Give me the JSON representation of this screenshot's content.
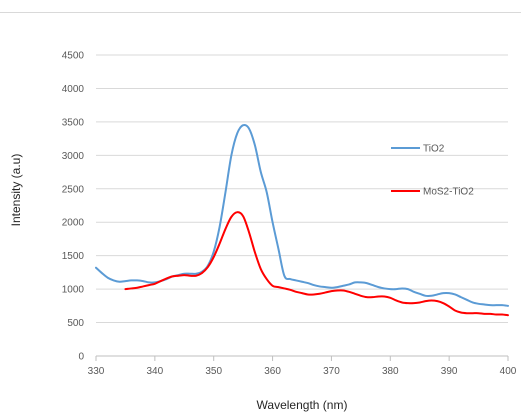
{
  "chart_data": {
    "type": "line",
    "xlabel": "Wavelength (nm)",
    "ylabel": "Intensity (a.u)",
    "xlim": [
      330,
      400
    ],
    "ylim": [
      0,
      4500
    ],
    "x_ticks": [
      "330",
      "340",
      "350",
      "360",
      "370",
      "380",
      "390",
      "400"
    ],
    "y_ticks": [
      "0",
      "500",
      "1000",
      "1500",
      "2000",
      "2500",
      "3000",
      "3500",
      "4000",
      "4500"
    ],
    "grid": "horizontal",
    "legend_position": "right",
    "series": [
      {
        "name": "TiO2",
        "color": "#5b9bd5",
        "x": [
          330,
          331,
          332,
          333,
          334,
          335,
          336,
          337,
          338,
          339,
          340,
          341,
          342,
          343,
          344,
          345,
          346,
          347,
          348,
          349,
          350,
          351,
          352,
          353,
          354,
          355,
          356,
          357,
          358,
          359,
          360,
          361,
          362,
          363,
          364,
          365,
          366,
          367,
          368,
          369,
          370,
          371,
          372,
          373,
          374,
          375,
          376,
          377,
          378,
          379,
          380,
          381,
          382,
          383,
          384,
          385,
          386,
          387,
          388,
          389,
          390,
          391,
          392,
          393,
          394,
          395,
          396,
          397,
          398,
          399,
          400
        ],
        "y": [
          1320,
          1240,
          1170,
          1130,
          1110,
          1120,
          1130,
          1130,
          1120,
          1100,
          1100,
          1120,
          1150,
          1190,
          1210,
          1230,
          1230,
          1230,
          1260,
          1350,
          1560,
          1930,
          2450,
          3000,
          3330,
          3450,
          3400,
          3150,
          2750,
          2450,
          2000,
          1600,
          1200,
          1150,
          1130,
          1110,
          1090,
          1060,
          1040,
          1030,
          1020,
          1030,
          1050,
          1070,
          1100,
          1100,
          1090,
          1060,
          1030,
          1010,
          1000,
          1000,
          1010,
          1000,
          960,
          930,
          900,
          900,
          920,
          940,
          940,
          920,
          880,
          840,
          800,
          780,
          770,
          760,
          760,
          760,
          750
        ]
      },
      {
        "name": "MoS2-TiO2",
        "color": "#ff0000",
        "x": [
          335,
          336,
          337,
          338,
          339,
          340,
          341,
          342,
          343,
          344,
          345,
          346,
          347,
          348,
          349,
          350,
          351,
          352,
          353,
          354,
          355,
          356,
          357,
          358,
          359,
          360,
          361,
          362,
          363,
          364,
          365,
          366,
          367,
          368,
          369,
          370,
          371,
          372,
          373,
          374,
          375,
          376,
          377,
          378,
          379,
          380,
          381,
          382,
          383,
          384,
          385,
          386,
          387,
          388,
          389,
          390,
          391,
          392,
          393,
          394,
          395,
          396,
          397,
          398,
          399,
          400
        ],
        "y": [
          1000,
          1010,
          1020,
          1040,
          1060,
          1080,
          1120,
          1160,
          1190,
          1200,
          1210,
          1200,
          1200,
          1240,
          1330,
          1480,
          1680,
          1900,
          2080,
          2150,
          2090,
          1850,
          1550,
          1300,
          1150,
          1050,
          1030,
          1010,
          990,
          960,
          940,
          920,
          920,
          930,
          950,
          970,
          980,
          980,
          960,
          930,
          900,
          880,
          880,
          890,
          890,
          870,
          830,
          800,
          790,
          790,
          800,
          820,
          830,
          820,
          790,
          740,
          680,
          650,
          640,
          640,
          640,
          630,
          630,
          620,
          620,
          610
        ]
      }
    ]
  }
}
